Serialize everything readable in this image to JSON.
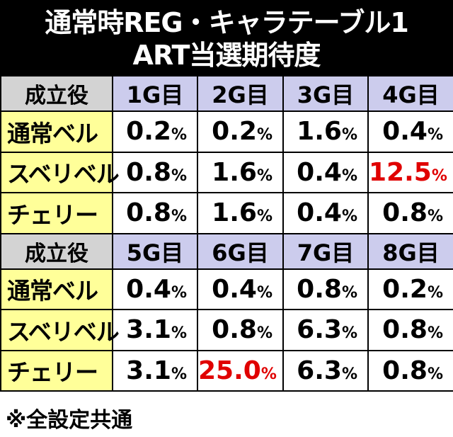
{
  "title": {
    "line1": "通常時REG・キャラテーブル1",
    "line2": "ART当選期待度"
  },
  "tables": [
    {
      "label_header": "成立役",
      "columns": [
        "1G目",
        "2G目",
        "3G目",
        "4G目"
      ],
      "rows": [
        {
          "label": "通常ベル",
          "values": [
            "0.2",
            "0.2",
            "1.6",
            "0.4"
          ]
        },
        {
          "label": "スベリベル",
          "values": [
            "0.8",
            "1.6",
            "0.4",
            "12.5"
          ]
        },
        {
          "label": "チェリー",
          "values": [
            "0.8",
            "1.6",
            "0.4",
            "0.8"
          ]
        }
      ]
    },
    {
      "label_header": "成立役",
      "columns": [
        "5G目",
        "6G目",
        "7G目",
        "8G目"
      ],
      "rows": [
        {
          "label": "通常ベル",
          "values": [
            "0.4",
            "0.4",
            "0.8",
            "0.2"
          ]
        },
        {
          "label": "スベリベル",
          "values": [
            "3.1",
            "0.8",
            "6.3",
            "0.8"
          ]
        },
        {
          "label": "チェリー",
          "values": [
            "3.1",
            "25.0",
            "6.3",
            "0.8"
          ]
        }
      ]
    }
  ],
  "percent_sign": "%",
  "highlight_color": "#e00000",
  "footnote": "※全設定共通"
}
